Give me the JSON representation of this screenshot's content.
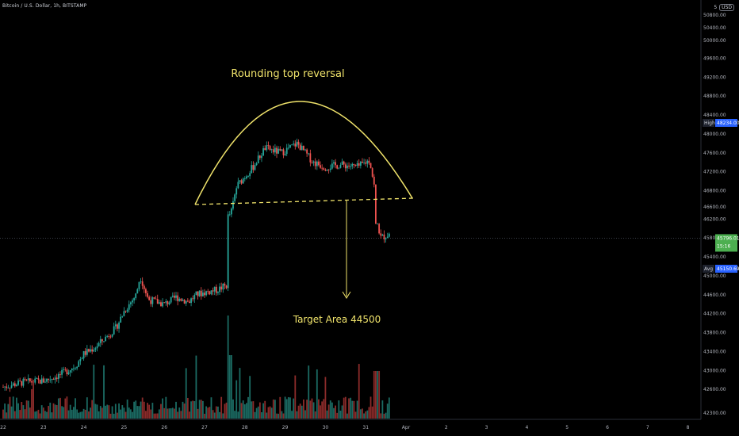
{
  "header": {
    "symbol_title": "Bitcoin / U.S. Dollar, 1h, BITSTAMP",
    "scale_prefix": "5",
    "currency": "USD"
  },
  "colors": {
    "background": "#000000",
    "up": "#26a69a",
    "down": "#ef5350",
    "volume_up": "#1b6b63",
    "volume_down": "#8b2b2a",
    "annotation": "#f0e36b",
    "axis_text": "#b2b5be",
    "current_price_bg": "#4caf50",
    "marker_bg": "#2962ff"
  },
  "annotations": {
    "pattern_label": "Rounding top reversal",
    "target_label": "Target Area 44500"
  },
  "chart_data": {
    "type": "candlestick",
    "title": "Bitcoin / U.S. Dollar, 1h, BITSTAMP",
    "y_axis_labels": [
      "50800.00",
      "50400.00",
      "50000.00",
      "49600.00",
      "49200.00",
      "48800.00",
      "48400.00",
      "48000.00",
      "47600.00",
      "47200.00",
      "46800.00",
      "46600.00",
      "46200.00",
      "45800.00",
      "45400.00",
      "45000.00",
      "44600.00",
      "44200.00",
      "43800.00",
      "43400.00",
      "43000.00",
      "42600.00",
      "42300.00"
    ],
    "x_axis_labels": [
      "22",
      "23",
      "24",
      "25",
      "26",
      "27",
      "28",
      "29",
      "30",
      "31",
      "Apr",
      "2",
      "3",
      "4",
      "5",
      "6",
      "7",
      "8"
    ],
    "price_markers": [
      {
        "label": "High",
        "value": "48234.00",
        "price": 48234
      },
      {
        "label": "",
        "value": "45796.01",
        "price": 45796,
        "countdown": "15:16",
        "current": true
      },
      {
        "label": "Avg",
        "value": "45150.69",
        "price": 45150
      }
    ],
    "neckline_price": 46660,
    "target_price": 44500,
    "series": [
      {
        "name": "",
        "day_start": 22,
        "day_end": 31.6,
        "open_close_pairs": "generated"
      }
    ]
  }
}
